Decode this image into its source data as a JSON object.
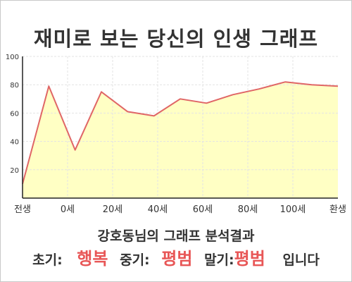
{
  "title": "재미로 보는 당신의 인생 그래프",
  "summary": "강호동님의 그래프 분석결과",
  "result": {
    "early_label": "초기:",
    "early_value": "행복",
    "mid_label": "중기:",
    "mid_value": "평범",
    "late_label": "말기:",
    "late_value": "평범",
    "tail": "입니다"
  },
  "colors": {
    "line": "#e06666",
    "fill": "#ffffc4",
    "grid": "#e3e3e3",
    "highlight": "#e85656"
  },
  "chart_data": {
    "type": "area",
    "title": "재미로 보는 당신의 인생 그래프",
    "x_tick_labels": [
      "전생",
      "0세",
      "20세",
      "40세",
      "60세",
      "80세",
      "100세",
      "환생"
    ],
    "y_ticks": [
      20,
      40,
      60,
      80,
      100
    ],
    "ylim": [
      0,
      100
    ],
    "grid": true,
    "legend": "none",
    "series": [
      {
        "values": [
          10,
          79,
          34,
          75,
          61,
          58,
          70,
          67,
          73,
          77,
          82,
          80,
          79
        ]
      }
    ]
  }
}
